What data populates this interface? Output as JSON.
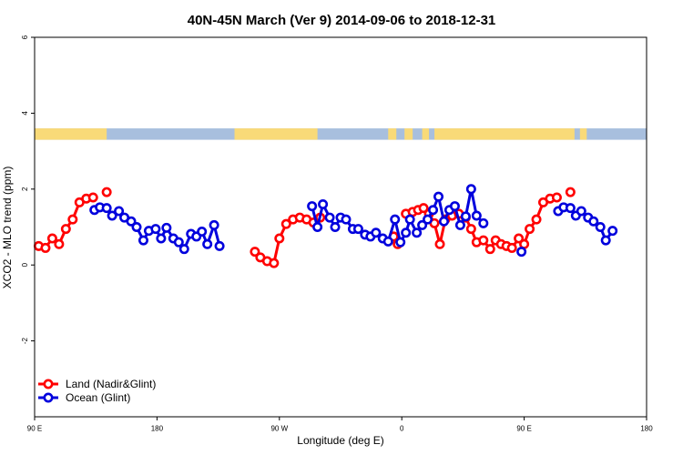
{
  "chart_data": {
    "type": "line",
    "title": "40N-45N March (Ver 9)   2014-09-06 to 2018-12-31",
    "xlabel": "Longitude (deg E)",
    "ylabel": "XCO2 - MLO trend (ppm)",
    "xlim": [
      90,
      540
    ],
    "ylim": [
      -4,
      6
    ],
    "x_ticks": [
      {
        "value": 90,
        "label": "90 E"
      },
      {
        "value": 180,
        "label": "180"
      },
      {
        "value": 270,
        "label": "90 W"
      },
      {
        "value": 360,
        "label": "0"
      },
      {
        "value": 450,
        "label": "90 E"
      },
      {
        "value": 540,
        "label": "180"
      }
    ],
    "y_ticks": [
      {
        "value": -2,
        "label": "-2"
      },
      {
        "value": 0,
        "label": "0"
      },
      {
        "value": 2,
        "label": "2"
      },
      {
        "value": 4,
        "label": "4"
      },
      {
        "value": 6,
        "label": "6"
      }
    ],
    "land_ocean_strip": {
      "y_range": [
        3.3,
        3.6
      ],
      "land_color": "#f9da78",
      "ocean_color": "#a8bfde",
      "land_segments": [
        [
          90,
          143
        ],
        [
          237,
          298
        ],
        [
          350,
          356
        ],
        [
          362,
          368
        ],
        [
          375,
          380
        ],
        [
          384,
          487
        ],
        [
          491,
          496
        ]
      ]
    },
    "legend_position": "bottom-left",
    "series": [
      {
        "name": "Land (Nadir&Glint)",
        "color": "#ff0000",
        "segments": [
          [
            [
              93,
              0.5
            ],
            [
              98,
              0.45
            ],
            [
              103,
              0.7
            ],
            [
              108,
              0.55
            ],
            [
              113,
              0.95
            ],
            [
              118,
              1.2
            ],
            [
              123,
              1.65
            ],
            [
              128,
              1.75
            ],
            [
              133,
              1.78
            ]
          ],
          [
            [
              143,
              1.92
            ]
          ],
          [
            [
              252,
              0.35
            ],
            [
              256,
              0.2
            ],
            [
              261,
              0.1
            ],
            [
              266,
              0.05
            ],
            [
              270,
              0.7
            ],
            [
              275,
              1.08
            ],
            [
              280,
              1.2
            ],
            [
              285,
              1.25
            ],
            [
              290,
              1.2
            ],
            [
              295,
              1.12
            ],
            [
              300,
              1.25
            ]
          ],
          [
            [
              354,
              0.75
            ],
            [
              357,
              0.55
            ]
          ],
          [
            [
              363,
              1.35
            ],
            [
              368,
              1.4
            ],
            [
              372,
              1.45
            ],
            [
              376,
              1.5
            ],
            [
              380,
              1.35
            ],
            [
              384,
              1.1
            ],
            [
              388,
              0.55
            ],
            [
              392,
              1.2
            ],
            [
              397,
              1.3
            ],
            [
              402,
              1.35
            ],
            [
              407,
              1.25
            ],
            [
              411,
              0.95
            ],
            [
              415,
              0.6
            ],
            [
              420,
              0.65
            ],
            [
              425,
              0.42
            ],
            [
              429,
              0.65
            ],
            [
              433,
              0.55
            ],
            [
              437,
              0.5
            ],
            [
              441,
              0.45
            ],
            [
              446,
              0.7
            ],
            [
              450,
              0.55
            ],
            [
              454,
              0.95
            ],
            [
              459,
              1.2
            ],
            [
              464,
              1.65
            ],
            [
              469,
              1.75
            ],
            [
              474,
              1.78
            ]
          ],
          [
            [
              484,
              1.92
            ]
          ]
        ]
      },
      {
        "name": "Ocean (Glint)",
        "color": "#0000dd",
        "segments": [
          [
            [
              134,
              1.45
            ],
            [
              138,
              1.52
            ],
            [
              143,
              1.5
            ],
            [
              147,
              1.3
            ],
            [
              152,
              1.42
            ],
            [
              156,
              1.25
            ],
            [
              161,
              1.15
            ],
            [
              165,
              1.0
            ],
            [
              170,
              0.65
            ],
            [
              174,
              0.9
            ],
            [
              179,
              0.95
            ],
            [
              183,
              0.7
            ],
            [
              187,
              0.98
            ],
            [
              192,
              0.7
            ],
            [
              196,
              0.6
            ],
            [
              200,
              0.42
            ],
            [
              205,
              0.82
            ],
            [
              209,
              0.75
            ],
            [
              213,
              0.88
            ],
            [
              217,
              0.55
            ],
            [
              222,
              1.05
            ],
            [
              226,
              0.5
            ]
          ],
          [
            [
              294,
              1.55
            ],
            [
              298,
              1.0
            ],
            [
              302,
              1.6
            ],
            [
              307,
              1.25
            ],
            [
              311,
              1.0
            ],
            [
              315,
              1.25
            ],
            [
              319,
              1.2
            ],
            [
              324,
              0.95
            ],
            [
              328,
              0.95
            ],
            [
              333,
              0.8
            ],
            [
              337,
              0.75
            ],
            [
              341,
              0.85
            ],
            [
              346,
              0.7
            ],
            [
              350,
              0.62
            ],
            [
              355,
              1.2
            ],
            [
              359,
              0.6
            ],
            [
              363,
              0.85
            ],
            [
              366,
              1.2
            ],
            [
              371,
              0.85
            ],
            [
              375,
              1.05
            ],
            [
              379,
              1.2
            ],
            [
              383,
              1.45
            ],
            [
              387,
              1.8
            ],
            [
              391,
              1.15
            ],
            [
              395,
              1.45
            ],
            [
              399,
              1.55
            ],
            [
              403,
              1.05
            ],
            [
              407,
              1.28
            ],
            [
              411,
              2.0
            ],
            [
              415,
              1.3
            ],
            [
              420,
              1.1
            ]
          ],
          [
            [
              448,
              0.35
            ]
          ],
          [
            [
              475,
              1.42
            ],
            [
              479,
              1.52
            ],
            [
              484,
              1.5
            ],
            [
              488,
              1.3
            ],
            [
              492,
              1.42
            ],
            [
              497,
              1.25
            ],
            [
              501,
              1.15
            ],
            [
              506,
              1.0
            ],
            [
              510,
              0.65
            ],
            [
              515,
              0.9
            ]
          ]
        ]
      }
    ]
  }
}
